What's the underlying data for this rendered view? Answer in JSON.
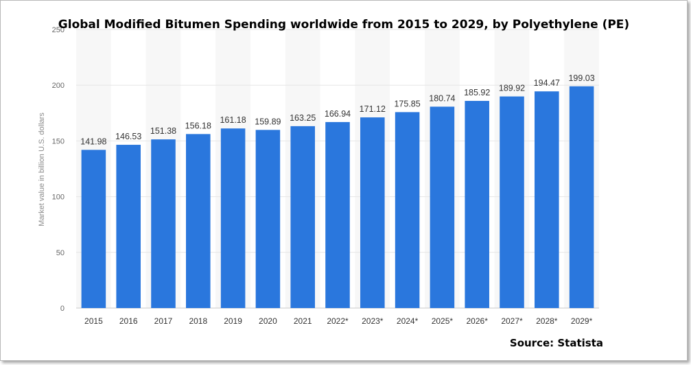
{
  "chart_data": {
    "type": "bar",
    "title": "Global Modified Bitumen Spending worldwide from 2015 to 2029, by Polyethylene (PE)",
    "ylabel": "Market value in billion U.S. dollars",
    "xlabel": "",
    "source": "Source: Statista",
    "categories": [
      "2015",
      "2016",
      "2017",
      "2018",
      "2019",
      "2020",
      "2021",
      "2022*",
      "2023*",
      "2024*",
      "2025*",
      "2026*",
      "2027*",
      "2028*",
      "2029*"
    ],
    "values": [
      141.98,
      146.53,
      151.38,
      156.18,
      161.18,
      159.89,
      163.25,
      166.94,
      171.12,
      175.85,
      180.74,
      185.92,
      189.92,
      194.47,
      199.03
    ],
    "value_labels": [
      "141.98",
      "146.53",
      "151.38",
      "156.18",
      "161.18",
      "159.89",
      "163.25",
      "166.94",
      "171.12",
      "175.85",
      "180.74",
      "185.92",
      "189.92",
      "194.47",
      "199.03"
    ],
    "yticks": [
      "0",
      "50",
      "100",
      "150",
      "200",
      "250"
    ],
    "ylim": [
      0,
      250
    ],
    "grid": true,
    "legend": "none",
    "colors": {
      "bar": "#2a77dd",
      "grid": "#e6e6e6",
      "band": "#f7f7f7"
    }
  }
}
